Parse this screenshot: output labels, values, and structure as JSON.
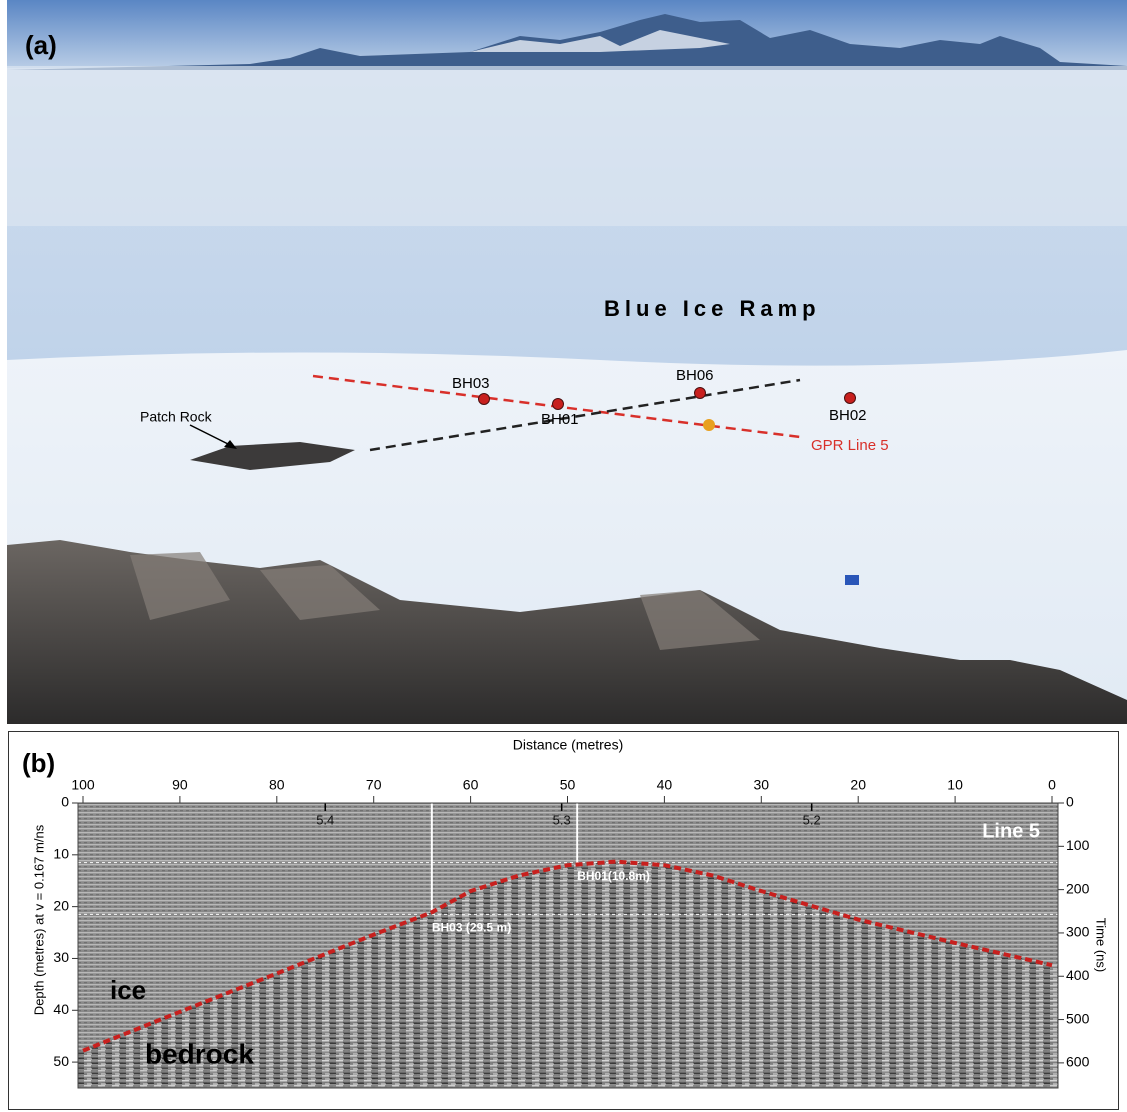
{
  "panel_a": {
    "label": "(a)",
    "title": "Blue Ice Ramp",
    "boreholes": [
      "BH03",
      "BH01",
      "BH06",
      "BH02"
    ],
    "feature": "Patch Rock",
    "line_label": "GPR Line 5"
  },
  "chart_data": {
    "type": "line",
    "label": "(b)",
    "title": "Line 5",
    "x_label": "Distance (metres)",
    "y_label": "Depth (metres) at v = 0.167 m/ns",
    "y2_label": "Time (ns)",
    "x": [
      100,
      90,
      80,
      70,
      64,
      60,
      55,
      50,
      45,
      40,
      35,
      30,
      20,
      10,
      0
    ],
    "values": [
      47.8,
      40.3,
      32.9,
      25.4,
      21.1,
      17,
      14,
      12,
      11.3,
      12,
      14,
      17,
      22.5,
      27,
      31.3
    ],
    "color": "#c8201e",
    "xlim": [
      100,
      0
    ],
    "xticks": [
      100,
      90,
      80,
      70,
      60,
      50,
      40,
      30,
      20,
      10,
      0
    ],
    "ylim": [
      55,
      0
    ],
    "yticks": [
      0,
      10,
      20,
      30,
      40,
      50
    ],
    "y2lim": [
      658,
      0
    ],
    "y2ticks": [
      0,
      100,
      200,
      300,
      400,
      500,
      600
    ],
    "secondary_ticks": [
      {
        "value": 75,
        "label": "5.4"
      },
      {
        "value": 50.6,
        "label": "5.3"
      },
      {
        "value": 24.8,
        "label": "5.2"
      }
    ],
    "boreholes": [
      {
        "label": "BH01(10.8m)",
        "distance": 49,
        "depth": 11.5
      },
      {
        "label": "BH03 (29.5 m)",
        "distance": 64,
        "depth": 21.5
      }
    ],
    "regions": [
      "ice",
      "bedrock"
    ]
  }
}
